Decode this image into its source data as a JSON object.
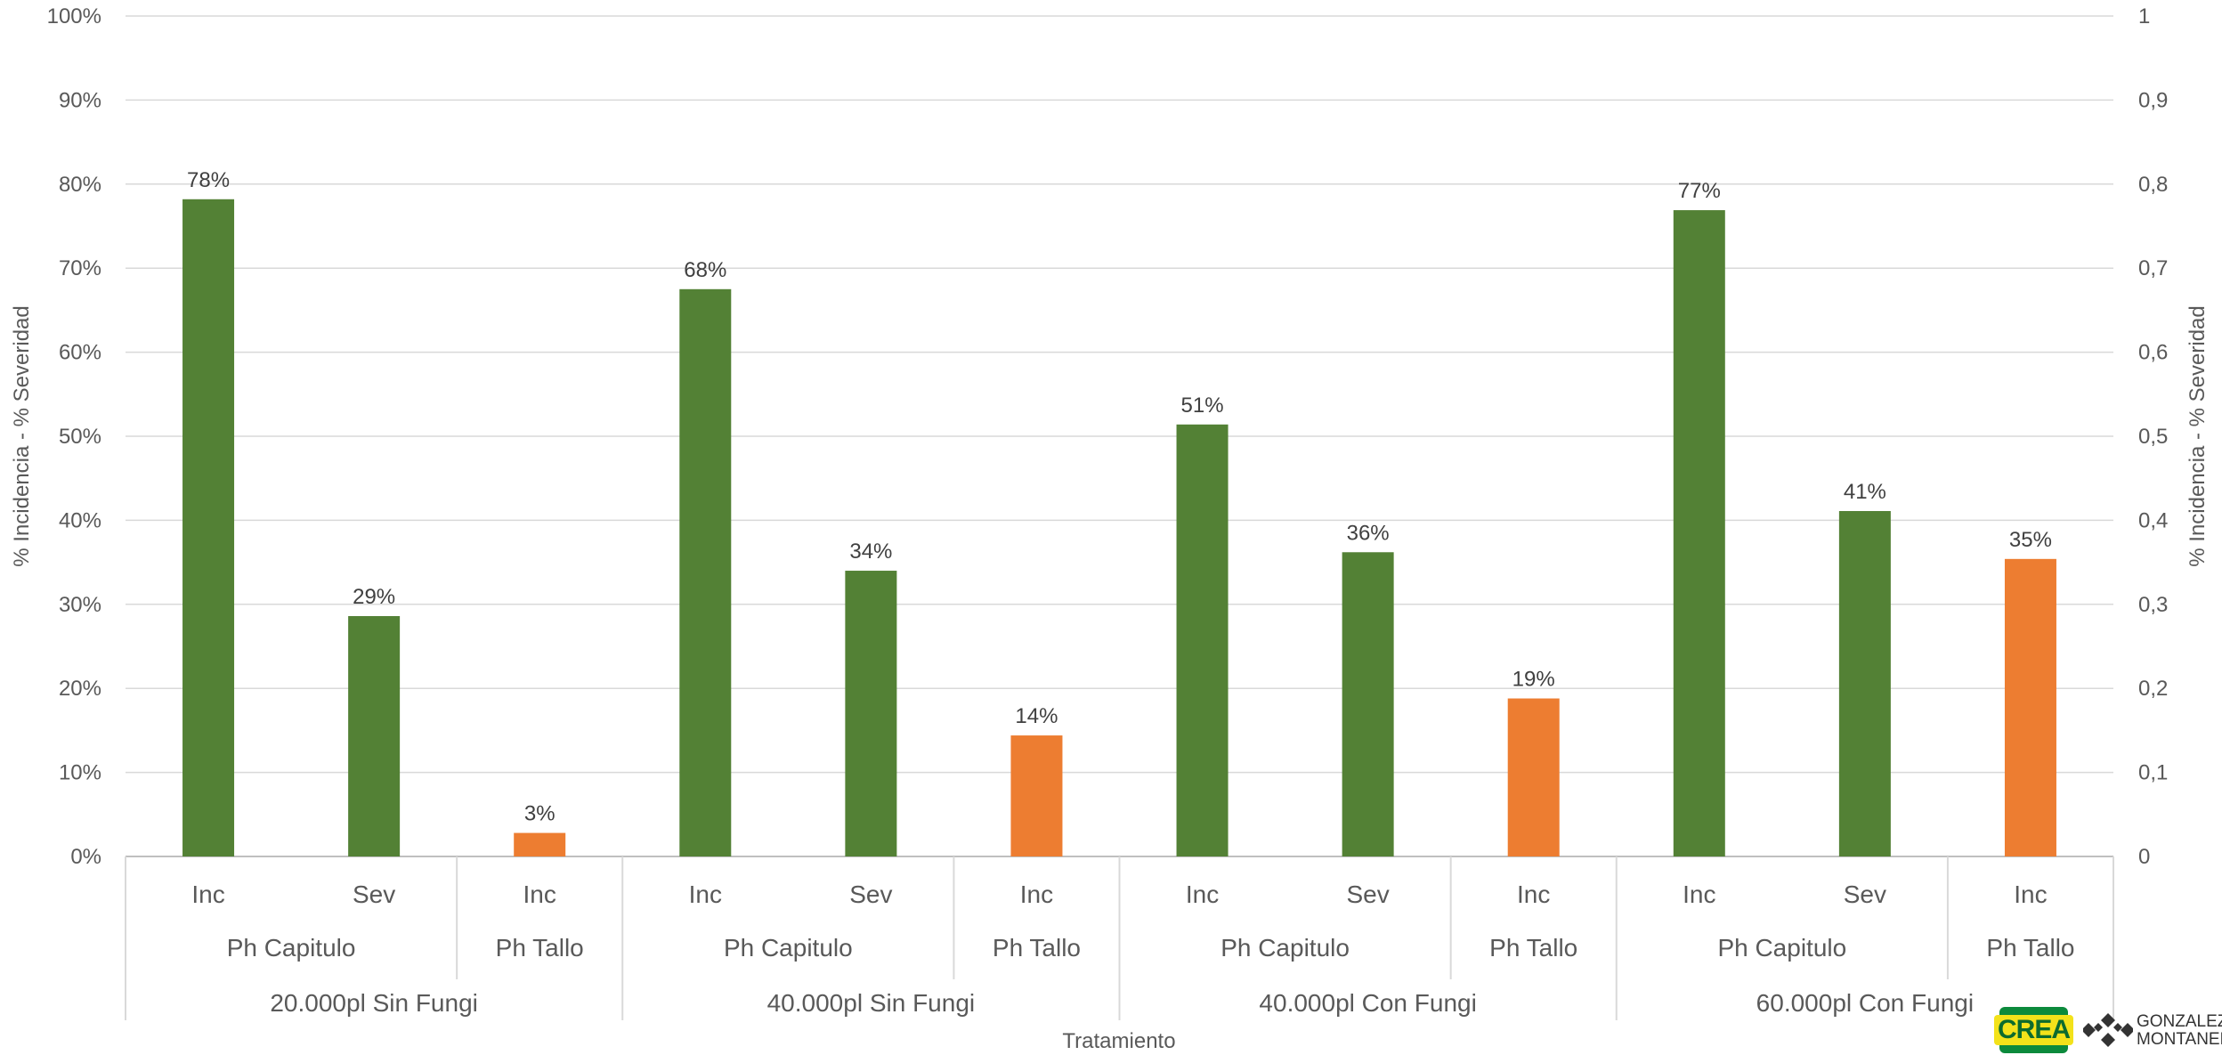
{
  "chart_data": {
    "type": "bar",
    "title": "",
    "xlabel": "Tratamiento",
    "ylabel": "% Incidencia - % Severidad",
    "ylabel_right": "% Incidencia - % Severidad",
    "ylim": [
      0,
      100
    ],
    "y_ticks": [
      "0%",
      "10%",
      "20%",
      "30%",
      "40%",
      "50%",
      "60%",
      "70%",
      "80%",
      "90%",
      "100%"
    ],
    "y2_ticks": [
      "0",
      "0,1",
      "0,2",
      "0,3",
      "0,4",
      "0,5",
      "0,6",
      "0,7",
      "0,8",
      "0,9",
      "1"
    ],
    "grid": true,
    "colors": {
      "capitulo": "#538135",
      "tallo": "#ed7d31"
    },
    "groups": [
      {
        "label": "20.000pl Sin Fungi",
        "subgroups": [
          {
            "label": "Ph Capitulo",
            "bars": [
              {
                "label": "Inc",
                "value": 78.2,
                "text": "78%",
                "color_key": "capitulo"
              },
              {
                "label": "Sev",
                "value": 28.6,
                "text": "29%",
                "color_key": "capitulo"
              }
            ]
          },
          {
            "label": "Ph Tallo",
            "bars": [
              {
                "label": "Inc",
                "value": 2.8,
                "text": "3%",
                "color_key": "tallo"
              }
            ]
          }
        ]
      },
      {
        "label": "40.000pl Sin Fungi",
        "subgroups": [
          {
            "label": "Ph Capitulo",
            "bars": [
              {
                "label": "Inc",
                "value": 67.5,
                "text": "68%",
                "color_key": "capitulo"
              },
              {
                "label": "Sev",
                "value": 34.0,
                "text": "34%",
                "color_key": "capitulo"
              }
            ]
          },
          {
            "label": "Ph Tallo",
            "bars": [
              {
                "label": "Inc",
                "value": 14.4,
                "text": "14%",
                "color_key": "tallo"
              }
            ]
          }
        ]
      },
      {
        "label": "40.000pl Con Fungi",
        "subgroups": [
          {
            "label": "Ph Capitulo",
            "bars": [
              {
                "label": "Inc",
                "value": 51.4,
                "text": "51%",
                "color_key": "capitulo"
              },
              {
                "label": "Sev",
                "value": 36.2,
                "text": "36%",
                "color_key": "capitulo"
              }
            ]
          },
          {
            "label": "Ph Tallo",
            "bars": [
              {
                "label": "Inc",
                "value": 18.8,
                "text": "19%",
                "color_key": "tallo"
              }
            ]
          }
        ]
      },
      {
        "label": "60.000pl Con Fungi",
        "subgroups": [
          {
            "label": "Ph Capitulo",
            "bars": [
              {
                "label": "Inc",
                "value": 76.9,
                "text": "77%",
                "color_key": "capitulo"
              },
              {
                "label": "Sev",
                "value": 41.1,
                "text": "41%",
                "color_key": "capitulo"
              }
            ]
          },
          {
            "label": "Ph Tallo",
            "bars": [
              {
                "label": "Inc",
                "value": 35.4,
                "text": "35%",
                "color_key": "tallo"
              }
            ]
          }
        ]
      }
    ]
  },
  "logos": {
    "crea": "CREA",
    "gm_line1": "GONZALEZ",
    "gm_line2": "MONTANER"
  }
}
